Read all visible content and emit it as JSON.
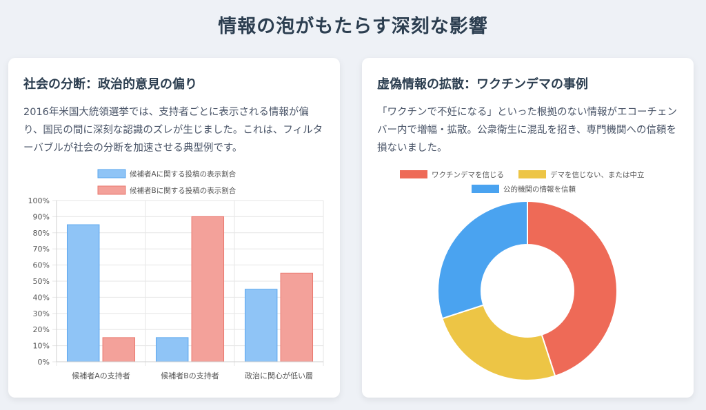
{
  "page": {
    "title": "情報の泡がもたらす深刻な影響"
  },
  "left_card": {
    "title": "社会の分断：政治的意見の偏り",
    "description": "2016年米国大統領選挙では、支持者ごとに表示される情報が偏り、国民の間に深刻な認識のズレが生じました。これは、フィルターバブルが社会の分断を加速させる典型例です。"
  },
  "right_card": {
    "title": "虚偽情報の拡散：ワクチンデマの事例",
    "description": "「ワクチンで不妊になる」といった根拠のない情報がエコーチェンバー内で増幅・拡散。公衆衛生に混乱を招き、専門機関への信頼を損ないました。"
  },
  "chart_data": [
    {
      "type": "bar",
      "categories": [
        "候補者Aの支持者",
        "候補者Bの支持者",
        "政治に関心が低い層"
      ],
      "series": [
        {
          "name": "候補者Aに関する投稿の表示割合",
          "values": [
            85,
            15,
            45
          ],
          "color": "#8fc4f6",
          "border": "#5aa6ee"
        },
        {
          "name": "候補者Bに関する投稿の表示割合",
          "values": [
            15,
            90,
            55
          ],
          "color": "#f3a19a",
          "border": "#ea776d"
        }
      ],
      "ylim": [
        0,
        100
      ],
      "yticks": [
        "0%",
        "10%",
        "20%",
        "30%",
        "40%",
        "50%",
        "60%",
        "70%",
        "80%",
        "90%",
        "100%"
      ],
      "grid": true,
      "legend": "top"
    },
    {
      "type": "pie",
      "donut": true,
      "labels": [
        "ワクチンデマを信じる",
        "デマを信じない、または中立",
        "公的機関の情報を信頼"
      ],
      "values": [
        45,
        25,
        30
      ],
      "colors": [
        "#ee6a57",
        "#edc545",
        "#4aa3f0"
      ],
      "legend": "top"
    }
  ]
}
